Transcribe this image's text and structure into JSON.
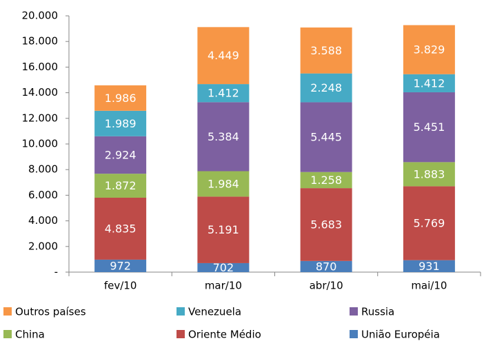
{
  "chart_data": {
    "type": "stacked-bar",
    "categories": [
      "fev/10",
      "mar/10",
      "abr/10",
      "mai/10"
    ],
    "series": [
      {
        "name": "União Européia",
        "color": "#4a7ebb",
        "values": [
          972,
          702,
          870,
          931
        ],
        "value_labels": [
          "972",
          "702",
          "870",
          "931"
        ]
      },
      {
        "name": "Oriente Médio",
        "color": "#be4b48",
        "values": [
          4835,
          5191,
          5683,
          5769
        ],
        "value_labels": [
          "4.835",
          "5.191",
          "5.683",
          "5.769"
        ]
      },
      {
        "name": "China",
        "color": "#98b954",
        "values": [
          1872,
          1984,
          1258,
          1883
        ],
        "value_labels": [
          "1.872",
          "1.984",
          "1.258",
          "1.883"
        ]
      },
      {
        "name": "Russia",
        "color": "#7d60a0",
        "values": [
          2924,
          5384,
          5445,
          5451
        ],
        "value_labels": [
          "2.924",
          "5.384",
          "5.445",
          "5.451"
        ]
      },
      {
        "name": "Venezuela",
        "color": "#46aac5",
        "values": [
          1989,
          1412,
          2248,
          1412
        ],
        "value_labels": [
          "1.989",
          "1.412",
          "2.248",
          "1.412"
        ]
      },
      {
        "name": "Outros países",
        "color": "#f79646",
        "values": [
          1986,
          4449,
          3588,
          3829
        ],
        "value_labels": [
          "1.986",
          "4.449",
          "3.588",
          "3.829"
        ]
      }
    ],
    "ylim": [
      0,
      20000
    ],
    "yticks": [
      {
        "value": 0,
        "label": "-"
      },
      {
        "value": 2000,
        "label": "2.000"
      },
      {
        "value": 4000,
        "label": "4.000"
      },
      {
        "value": 6000,
        "label": "6.000"
      },
      {
        "value": 8000,
        "label": "8.000"
      },
      {
        "value": 10000,
        "label": "10.000"
      },
      {
        "value": 12000,
        "label": "12.000"
      },
      {
        "value": 14000,
        "label": "14.000"
      },
      {
        "value": 16000,
        "label": "16.000"
      },
      {
        "value": 18000,
        "label": "18.000"
      },
      {
        "value": 20000,
        "label": "20.000"
      }
    ],
    "legend": "bottom"
  }
}
